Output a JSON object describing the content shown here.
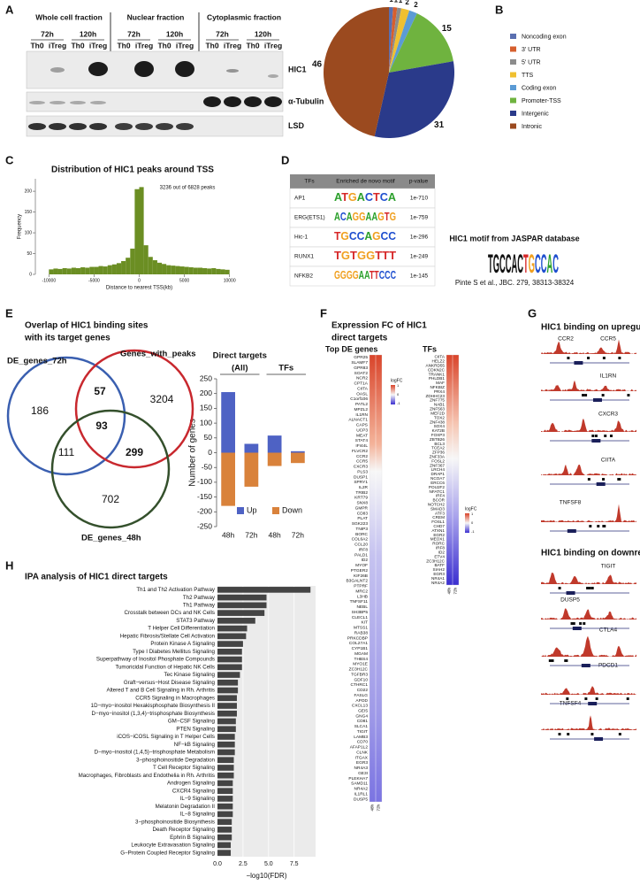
{
  "panel_labels": [
    "A",
    "B",
    "C",
    "D",
    "E",
    "F",
    "G",
    "H"
  ],
  "panels": {
    "A": {
      "fractions": [
        {
          "name": "Whole cell fraction",
          "times": [
            "72h",
            "120h"
          ]
        },
        {
          "name": "Nuclear fraction",
          "times": [
            "72h",
            "120h"
          ]
        },
        {
          "name": "Cytoplasmic fraction",
          "times": [
            "72h",
            "120h"
          ]
        }
      ],
      "lanes": [
        "Th0",
        "iTreg"
      ],
      "proteins": [
        "HIC1",
        "α-Tubulin",
        "LSD"
      ]
    },
    "D": {
      "table": {
        "headers": [
          "TFs",
          "Enriched de novo motif",
          "p-value"
        ],
        "rows": [
          [
            "AP1",
            "ATGACTCA",
            "1e-710"
          ],
          [
            "ERG(ETS1)",
            "ACAGGAAGTG",
            "1e-759"
          ],
          [
            "Hic-1",
            "TGCCAGCC",
            "1e-296"
          ],
          [
            "RUNX1",
            "TGTGGTTT",
            "1e-249"
          ],
          [
            "NFKB2",
            "GGGGAATTCCC",
            "1e-145"
          ]
        ]
      },
      "jaspar_title": "HIC1 motif from JASPAR database",
      "jaspar_logo": "TGCCAC",
      "citation": "Pinte S et al., JBC. 279, 38313-38324"
    },
    "E": {
      "title": [
        "Overlap of HIC1 binding sites",
        "with its target genes"
      ],
      "venn_sets": [
        "DE_genes_72h",
        "Genes_with_peaks",
        "DE_genes_48h"
      ],
      "venn_regions": [
        "186",
        "57",
        "3204",
        "93",
        "111",
        "299",
        "702"
      ]
    },
    "F": {
      "title": [
        "Expression FC of HIC1",
        "direct targets"
      ],
      "columns": [
        "Top DE genes",
        "TFs"
      ],
      "de_genes": [
        "GPR25",
        "SLAMF7",
        "GPR83",
        "SOAT2",
        "NCR2",
        "CPT1A",
        "CIITA",
        "OASL",
        "C1orf106",
        "PATL2",
        "MPZL2",
        "IL1RN",
        "ALNACT1",
        "CAPS",
        "UCP3",
        "MEAT",
        "STAT4",
        "IFI44L",
        "FLVCR2",
        "CCR2",
        "CCR5",
        "CXCR3",
        "PLS3",
        "DUSP1",
        "SPRY1",
        "IL2R",
        "TRIB2",
        "KRT79",
        "SNX8",
        "GMPR",
        "CD83",
        "PLAT",
        "SGK223",
        "TNIP3",
        "BORC",
        "COL6A2",
        "CCL20",
        "IRF8",
        "PALD1",
        "ID2",
        "MYOF",
        "PTGER2",
        "KIF26B",
        "B3GALNT2",
        "PTPRF",
        "MRC2",
        "L3HB",
        "TNFSF11",
        "NEBL",
        "SH3BP5",
        "CLECL1",
        "KIT",
        "MTSS1",
        "RAB38",
        "PRKCDBP",
        "COL27A1",
        "CYP1B1",
        "MGAM",
        "THBS4",
        "MYO1E",
        "ZC3H12C",
        "TGFBR3",
        "GDF10",
        "CTHRC1",
        "CD22",
        "FASLG",
        "APOD",
        "CXCL13",
        "GEI5",
        "GNG4",
        "CD81",
        "SLCA1",
        "TIGIT",
        "LAMB3",
        "CD70",
        "AFAP1L2",
        "CLNK",
        "ITGAX",
        "EGR3",
        "NR4A3",
        "GE3I",
        "PLEKHA7",
        "SAMD11",
        "NR4A2",
        "IL1RL1",
        "DUSP5"
      ],
      "tfs": [
        "CIITA",
        "HELZ2",
        "ANKRD55",
        "CDKN2C",
        "TRANK1",
        "PHLDB1",
        "MAF",
        "NFKBIZ",
        "PRX4",
        "ZDHHC23",
        "ZNF775",
        "NAB1",
        "ZNF563",
        "MEF2D",
        "TOX2",
        "ZNF438",
        "SOX4",
        "KAT2B",
        "FOXP3",
        "ZBTB26",
        "BCL3",
        "TCEA2",
        "ZFP36",
        "ZNF33A",
        "FOSL2",
        "ZNF367",
        "LRCH4",
        "DRAP1",
        "NCOA7",
        "ERCC6",
        "POU2F2",
        "NFATC1",
        "IRF4",
        "BCOR",
        "NOTCH2",
        "SMAD3",
        "ATF3",
        "CREM",
        "FOSL1",
        "CHD7",
        "ATXN1",
        "EGR2",
        "MEOX1",
        "RORC",
        "IRF8",
        "ID2",
        "ETV4",
        "ZC3H12C",
        "BATF",
        "SIAH2",
        "EGR3",
        "NR4A1",
        "NR4A2"
      ],
      "sample_labels": [
        "48h",
        "72h"
      ],
      "legend_title": "logFC",
      "legend_ticks": [
        1,
        0,
        -1
      ]
    },
    "G": {
      "up_title": "HIC1 binding on upregulated genes",
      "up_genes": [
        "CCR2",
        "CCR5",
        "IL1RN",
        "CXCR3",
        "CIITA",
        "TNFSF8"
      ],
      "down_title": "HIC1 binding on downregulated genes",
      "down_genes": [
        "TIGIT",
        "DUSP5",
        "CTLA4",
        "PDCD1",
        "TNFSF4"
      ]
    }
  },
  "chart_data": [
    {
      "type": "pie",
      "categories": [
        "Noncoding exon",
        "3' UTR",
        "5' UTR",
        "TTS",
        "Coding exon",
        "Promoter-TSS",
        "Intergenic",
        "Intronic"
      ],
      "values": [
        1,
        1,
        1,
        2,
        2,
        15,
        31,
        46
      ],
      "colors": [
        "#5a6fb0",
        "#d65f2e",
        "#8c8c8c",
        "#f0c030",
        "#5b9bd5",
        "#6fb33f",
        "#2a3a8a",
        "#9b4a1f"
      ]
    },
    {
      "type": "histogram",
      "title": "Distribution of HIC1 peaks around TSS",
      "annotation": "3236 out of 6828 peaks",
      "xlabel": "Distance to nearest TSS(kb)",
      "ylabel": "Frequency",
      "color": "#6b8e23",
      "bins": [
        -10000,
        -9500,
        -9000,
        -8500,
        -8000,
        -7500,
        -7000,
        -6500,
        -6000,
        -5500,
        -5000,
        -4500,
        -4000,
        -3500,
        -3000,
        -2500,
        -2000,
        -1500,
        -1000,
        -500,
        0,
        500,
        1000,
        1500,
        2000,
        2500,
        3000,
        3500,
        4000,
        4500,
        5000,
        5500,
        6000,
        6500,
        7000,
        7500,
        8000,
        8500,
        9000,
        9500,
        10000
      ],
      "counts": [
        12,
        14,
        13,
        15,
        14,
        16,
        15,
        17,
        16,
        18,
        18,
        20,
        19,
        22,
        24,
        27,
        32,
        40,
        62,
        205,
        210,
        70,
        42,
        34,
        28,
        25,
        22,
        21,
        20,
        19,
        18,
        17,
        16,
        16,
        15,
        14,
        15,
        13,
        12,
        11
      ],
      "xlim": [
        -11500,
        11500
      ],
      "xticks": [
        -10000,
        -5000,
        0,
        5000,
        10000
      ],
      "ylim": [
        0,
        230
      ],
      "yticks": [
        0,
        50,
        100,
        150,
        200
      ]
    },
    {
      "type": "bar",
      "title": "Direct targets",
      "groups": [
        "(All)",
        "TFs"
      ],
      "ylabel": "Number of genes",
      "categories": [
        "48h",
        "72h",
        "48h",
        "72h"
      ],
      "series": [
        {
          "name": "Up",
          "color": "#4e62c4",
          "values": [
            205,
            30,
            58,
            5
          ]
        },
        {
          "name": "Down",
          "color": "#d9823b",
          "values": [
            -180,
            -115,
            -45,
            -35
          ]
        }
      ],
      "ylim": [
        -250,
        250
      ],
      "yticks": [
        -250,
        -200,
        -150,
        -100,
        -50,
        0,
        50,
        100,
        150,
        200,
        250
      ]
    },
    {
      "type": "hbar",
      "title": "IPA analysis of HIC1 direct targets",
      "xlabel": "−log10(FDR)",
      "color": "#444444",
      "grid": true,
      "categories": [
        "Th1 and Th2 Activation Pathway",
        "Th2 Pathway",
        "Th1 Pathway",
        "Crosstalk between DCs and NK Cells",
        "STAT3 Pathway",
        "T Helper Cell Differentiation",
        "Hepatic Fibrosis/Stellate Cell Activation",
        "Protein Kinase A Signaling",
        "Type I Diabetes Mellitus Signaling",
        "Superpathway of Inositol Phosphate Compounds",
        "Tumoricidal Function of Hepatic NK Cells",
        "Tec Kinase Signaling",
        "Graft−versus−Host Disease Signaling",
        "Altered T and B Cell Signaling in Rh. Arthritis",
        "CCR5 Signaling in Macrophages",
        "1D−myo−inositol Hexakisphosphate Biosynthesis II",
        "D−myo−inositol (1,3,4)−trisphosphate Biosynthesis",
        "GM−CSF Signaling",
        "PTEN Signaling",
        "iCOS−iCOSL Signaling in T Helper Cells",
        "NF−kB Signaling",
        "D−myo−inositol (1,4,5)−trisphosphate Metabolism",
        "3−phosphoinositide Degradation",
        "T Cell Receptor Signaling",
        "Macrophages, Fibroblasts and Endothelia in Rh. Arthritis",
        "Androgen Signaling",
        "CXCR4 Signaling",
        "IL−9 Signaling",
        "Melatonin Degradation II",
        "IL−8 Signaling",
        "3−phosphoinositide Biosynthesis",
        "Death Receptor Signaling",
        "Ephrin B Signaling",
        "Leukocyte Extravasation Signaling",
        "G−Protein Coupled Receptor Signaling"
      ],
      "values": [
        9.1,
        4.8,
        4.8,
        4.6,
        3.7,
        2.9,
        2.8,
        2.5,
        2.4,
        2.4,
        2.4,
        2.2,
        2.0,
        2.0,
        1.9,
        1.9,
        1.9,
        1.8,
        1.8,
        1.7,
        1.7,
        1.7,
        1.6,
        1.6,
        1.6,
        1.5,
        1.5,
        1.5,
        1.5,
        1.5,
        1.4,
        1.4,
        1.4,
        1.3,
        1.3
      ],
      "xlim": [
        0,
        9.6
      ],
      "xticks": [
        {
          "value": 0,
          "label": "0.0"
        },
        2.5,
        {
          "value": 5,
          "label": "5.0"
        },
        7.5
      ]
    }
  ]
}
